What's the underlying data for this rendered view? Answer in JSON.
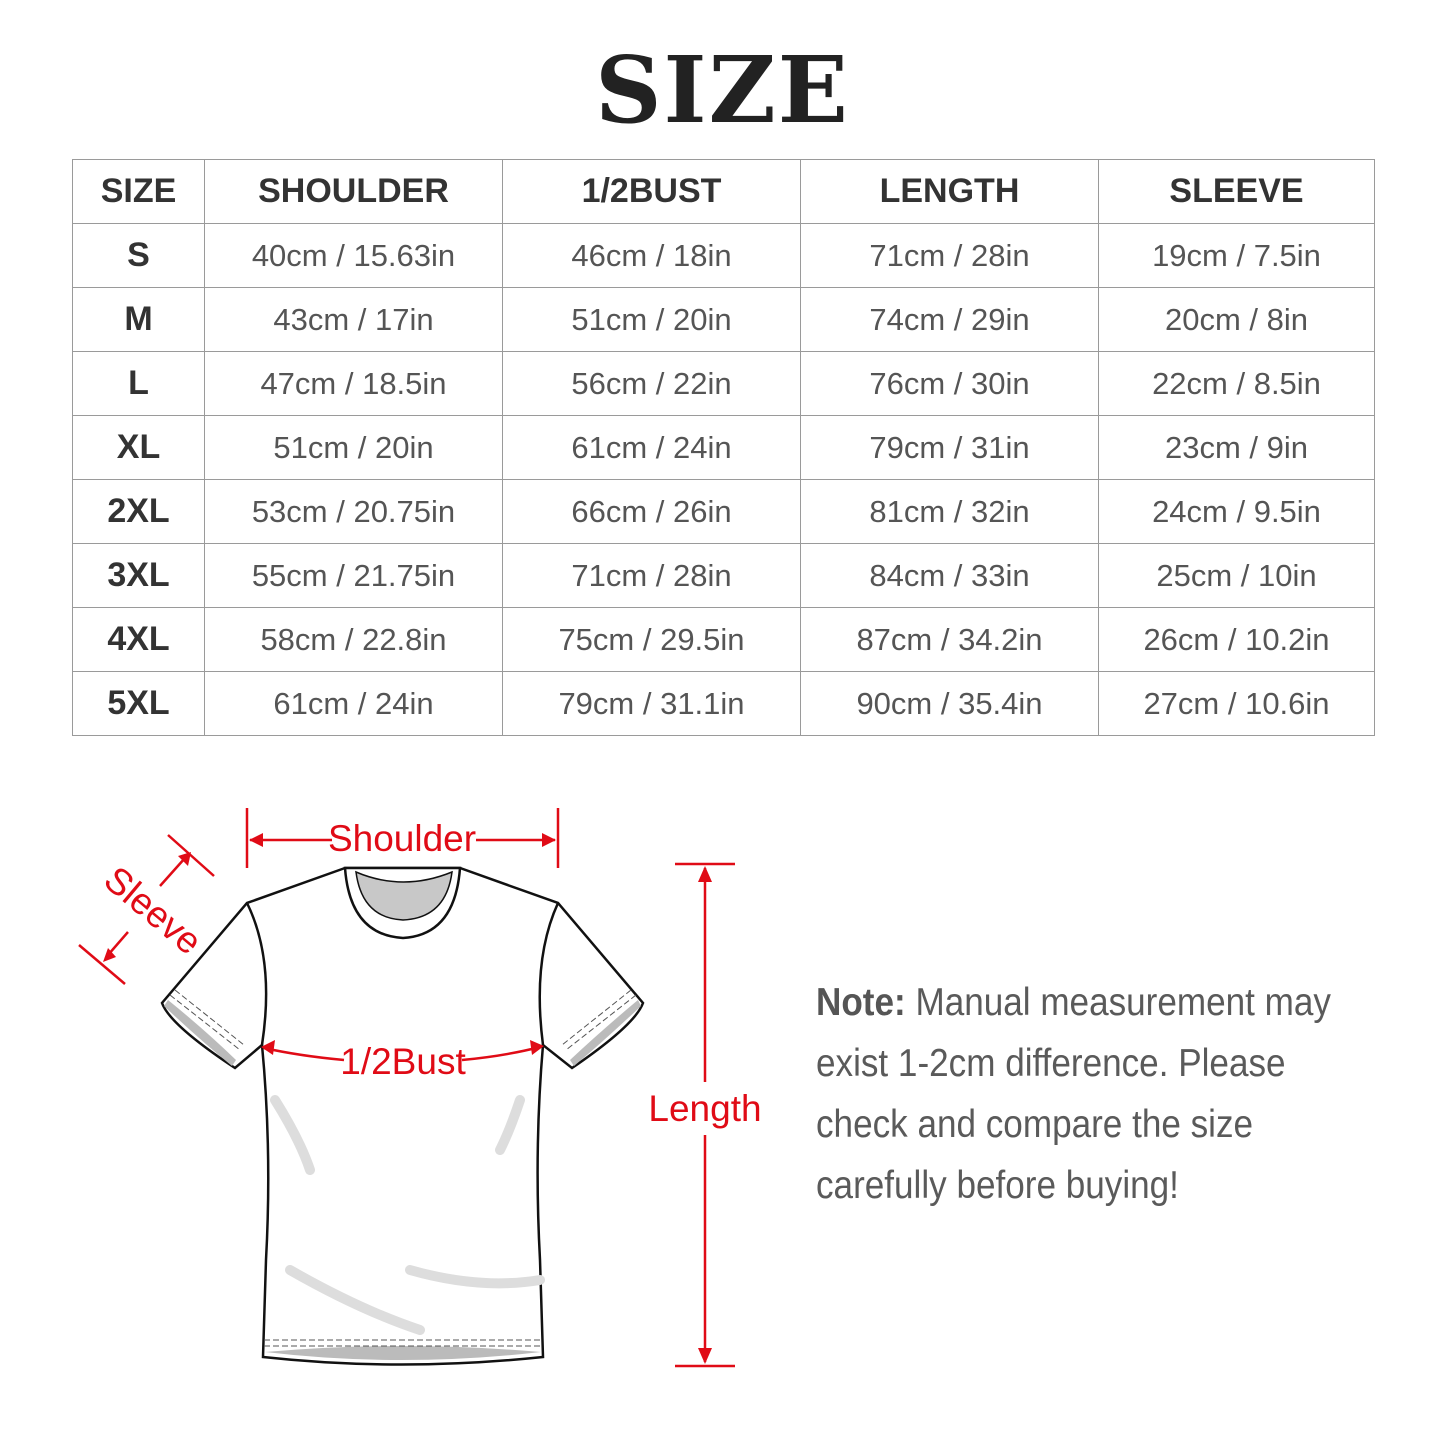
{
  "title": "SIZE",
  "table": {
    "headers": [
      "SIZE",
      "SHOULDER",
      "1/2BUST",
      "LENGTH",
      "SLEEVE"
    ],
    "rows": [
      [
        "S",
        "40cm / 15.63in",
        "46cm / 18in",
        "71cm / 28in",
        "19cm / 7.5in"
      ],
      [
        "M",
        "43cm / 17in",
        "51cm / 20in",
        "74cm / 29in",
        "20cm / 8in"
      ],
      [
        "L",
        "47cm / 18.5in",
        "56cm / 22in",
        "76cm / 30in",
        "22cm / 8.5in"
      ],
      [
        "XL",
        "51cm / 20in",
        "61cm / 24in",
        "79cm / 31in",
        "23cm / 9in"
      ],
      [
        "2XL",
        "53cm / 20.75in",
        "66cm / 26in",
        "81cm / 32in",
        "24cm / 9.5in"
      ],
      [
        "3XL",
        "55cm / 21.75in",
        "71cm / 28in",
        "84cm / 33in",
        "25cm / 10in"
      ],
      [
        "4XL",
        "58cm / 22.8in",
        "75cm / 29.5in",
        "87cm / 34.2in",
        "26cm / 10.2in"
      ],
      [
        "5XL",
        "61cm / 24in",
        "79cm / 31.1in",
        "90cm / 35.4in",
        "27cm / 10.6in"
      ]
    ]
  },
  "diagram": {
    "shoulder": "Shoulder",
    "sleeve": "Sleeve",
    "bust": "1/2Bust",
    "length": "Length",
    "accent_color": "#e00b16"
  },
  "note": {
    "label": "Note:",
    "text": "Manual measurement may exist 1-2cm difference. Please check and compare the size carefully before buying!"
  }
}
